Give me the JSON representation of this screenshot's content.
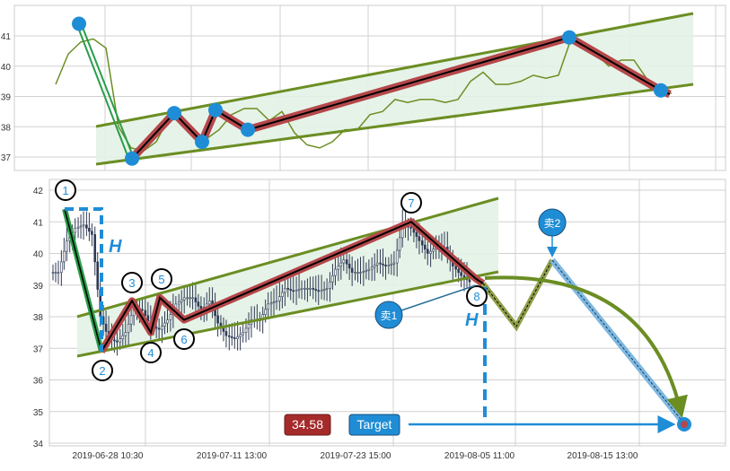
{
  "chart_data": [
    {
      "type": "line",
      "panel": "top",
      "ylim": [
        36.5,
        41.9
      ],
      "y_ticks": [
        "37",
        "38",
        "39",
        "40",
        "41"
      ],
      "grid": true,
      "series": [
        {
          "values": [
            39.4,
            40.4,
            40.8,
            40.9,
            40.6,
            38.0,
            37.3,
            37.2,
            37.5,
            38.3,
            38.2,
            37.7,
            37.6,
            37.9,
            38.4,
            38.6,
            38.6,
            38.2,
            38.5,
            37.8,
            37.4,
            37.3,
            37.5,
            37.9,
            37.9,
            38.4,
            38.5,
            38.9,
            38.8,
            38.9,
            38.9,
            38.8,
            38.9,
            39.5,
            39.8,
            39.4,
            39.4,
            39.5,
            39.7,
            39.6,
            39.7,
            40.9,
            40.8,
            40.4,
            40.0,
            40.2,
            40.2,
            39.6,
            39.3,
            39.1
          ]
        }
      ],
      "wave_points": [
        41.4,
        36.95,
        38.45,
        37.5,
        38.55,
        37.9,
        40.95,
        39.2
      ],
      "colors": {
        "price": "#6b8e23",
        "channel": "#6b8e23",
        "wave": "#b5474a",
        "node": "#1f8dd6",
        "fill": "#e3f2e6"
      }
    },
    {
      "type": "candlestick",
      "panel": "bottom",
      "ylim": [
        34,
        42.2
      ],
      "y_ticks": [
        "34",
        "35",
        "36",
        "37",
        "38",
        "39",
        "40",
        "41",
        "42"
      ],
      "x_ticks": [
        "2019-06-28 10:30",
        "2019-07-11 13:00",
        "2019-07-23 15:00",
        "2019-08-05 11:00",
        "2019-08-15 13:00"
      ],
      "grid": true,
      "wave_labels": [
        "1",
        "2",
        "3",
        "4",
        "5",
        "6",
        "7",
        "8"
      ],
      "wave_points": [
        41.4,
        36.9,
        38.5,
        37.5,
        38.6,
        37.9,
        41.0,
        39.2
      ],
      "height_label": "H",
      "sell_labels": [
        "卖1",
        "卖2"
      ],
      "target_value": "34.58",
      "target_label": "Target",
      "colors": {
        "candle": "#2f3a55",
        "channel": "#6b8e23",
        "wave": "#b5474a",
        "accent": "#1f8dd6",
        "target_box": "#a52a2a",
        "forecast": "#8fa04a"
      }
    }
  ]
}
